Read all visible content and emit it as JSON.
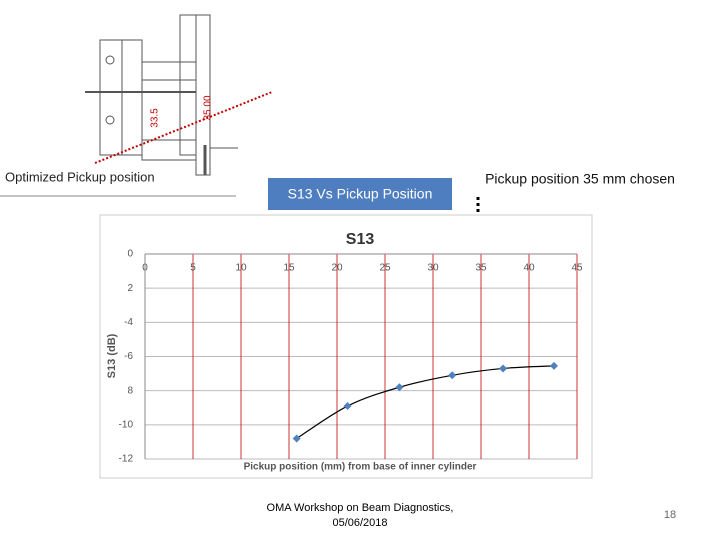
{
  "drawing": {
    "label": "Optimized Pickup position",
    "dimensions": [
      "33.5",
      "35.00"
    ]
  },
  "callouts": {
    "box": "S13 Vs Pickup Position",
    "note": "Pickup position 35 mm chosen"
  },
  "chart_data": {
    "type": "scatter",
    "title": "S13",
    "x_label": "Pickup position (mm) from base of inner cylinder",
    "y_label": "S13 (dB)",
    "series": [
      {
        "name": "S13",
        "color": "#4f81bd",
        "x": [
          15.8,
          21.1,
          26.5,
          32,
          37.3,
          42.6
        ],
        "values": [
          -10.8,
          -8.9,
          -7.8,
          -7.1,
          -6.7,
          -6.55
        ]
      }
    ],
    "trendline": true,
    "xlim": [
      0,
      45
    ],
    "xticks": [
      0,
      5,
      10,
      15,
      20,
      25,
      30,
      35,
      40,
      45
    ],
    "ylim": [
      -12,
      0
    ],
    "yticks": [
      0,
      {
        "value": -2,
        "label": "2"
      },
      -4,
      -6,
      {
        "value": -8,
        "label": "8"
      },
      -10,
      -12
    ],
    "grid": true
  },
  "footer": {
    "event": "OMA Workshop on Beam Diagnostics,",
    "date": "05/06/2018",
    "page": 18
  }
}
